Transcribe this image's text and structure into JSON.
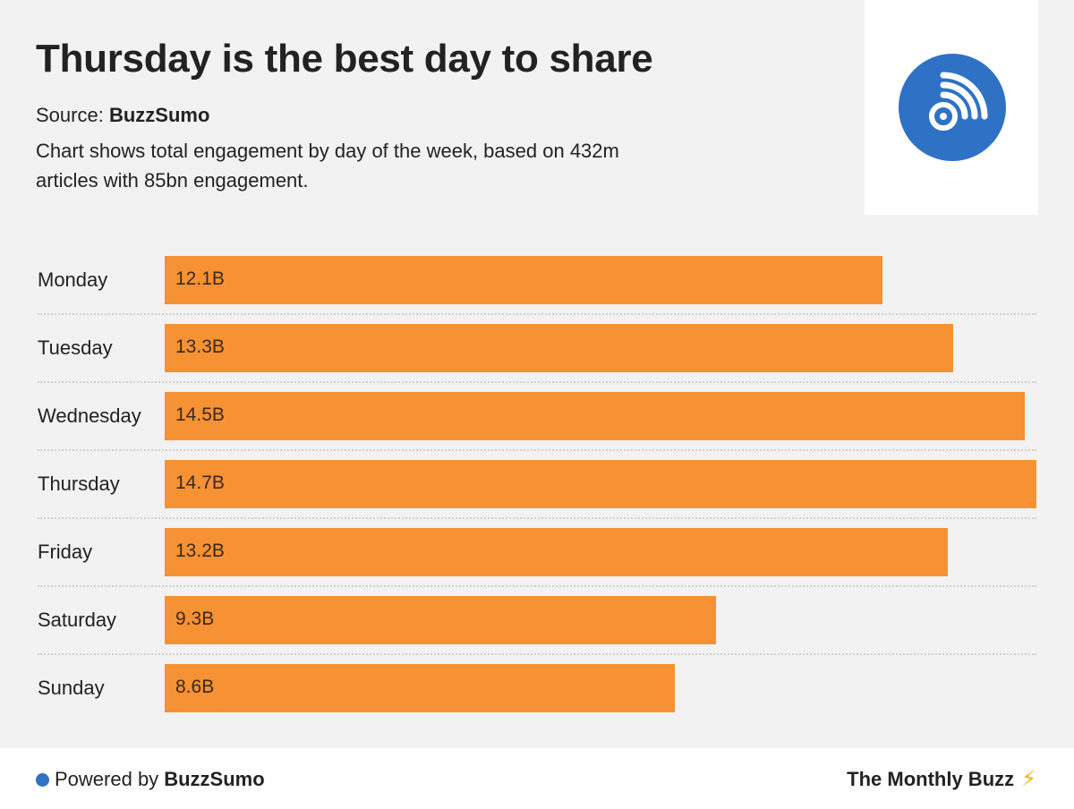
{
  "title": "Thursday is the best day to share",
  "source_prefix": "Source:",
  "source_name": "BuzzSumo",
  "description": "Chart shows total engagement by day of the week, based on 432m articles with 85bn engagement.",
  "logo_icon": "rss-broadcast-icon",
  "colors": {
    "bar": "#f69234",
    "brand_blue": "#2f72c5",
    "background": "#f2f2f2"
  },
  "chart_data": {
    "type": "bar",
    "orientation": "horizontal",
    "categories": [
      "Monday",
      "Tuesday",
      "Wednesday",
      "Thursday",
      "Friday",
      "Saturday",
      "Sunday"
    ],
    "values": [
      12.1,
      13.3,
      14.5,
      14.7,
      13.2,
      9.3,
      8.6
    ],
    "value_labels": [
      "12.1B",
      "13.3B",
      "14.5B",
      "14.7B",
      "13.2B",
      "9.3B",
      "8.6B"
    ],
    "unit": "B",
    "xlim": [
      0,
      14.7
    ],
    "grid": false
  },
  "footer": {
    "powered_prefix": "Powered by",
    "powered_name": "BuzzSumo",
    "newsletter": "The Monthly Buzz",
    "newsletter_icon": "lightning-bolt-icon"
  }
}
